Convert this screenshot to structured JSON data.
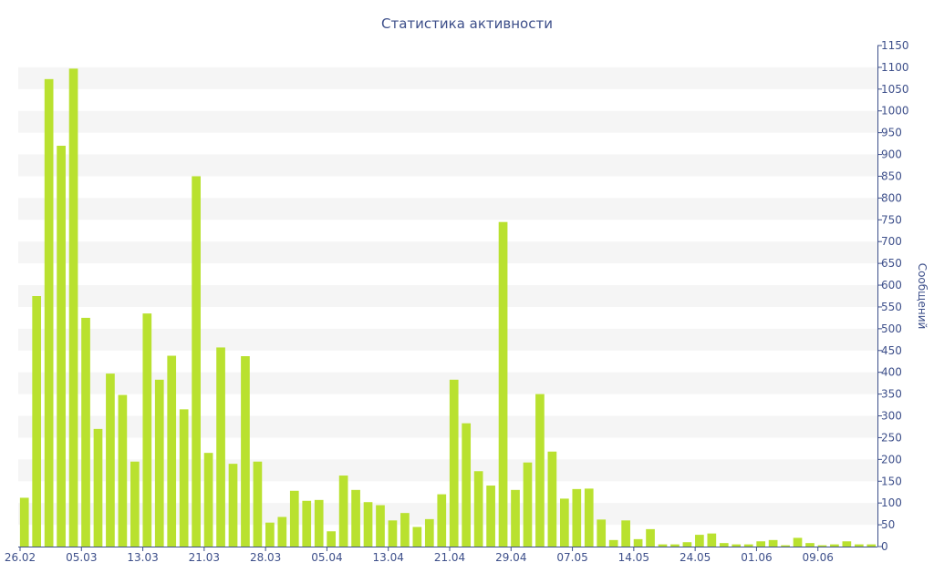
{
  "chart_data": {
    "type": "bar",
    "title": "Статистика активности",
    "xlabel": "",
    "ylabel": "Сообщений",
    "ylim": [
      0,
      1150
    ],
    "yticks": [
      0,
      50,
      100,
      150,
      200,
      250,
      300,
      350,
      400,
      450,
      500,
      550,
      600,
      650,
      700,
      750,
      800,
      850,
      900,
      950,
      1000,
      1050,
      1100,
      1150
    ],
    "x_tick_labels": [
      "26.02",
      "05.03",
      "13.03",
      "21.03",
      "28.03",
      "05.04",
      "13.04",
      "21.04",
      "29.04",
      "07.05",
      "14.05",
      "24.05",
      "01.06",
      "09.06"
    ],
    "x_tick_positions": [
      0,
      5,
      10,
      15,
      20,
      25,
      30,
      35,
      40,
      45,
      50,
      55,
      60,
      65
    ],
    "y_axis_position": "right",
    "grid": "horizontal alternating bands",
    "colors": {
      "bar": "#b9e12f",
      "text": "#3d4f8a",
      "band": "#f5f5f5"
    },
    "values": [
      112,
      575,
      1073,
      920,
      1097,
      525,
      270,
      397,
      348,
      195,
      535,
      383,
      438,
      315,
      850,
      215,
      457,
      190,
      437,
      195,
      55,
      68,
      128,
      105,
      107,
      35,
      163,
      130,
      102,
      95,
      60,
      77,
      45,
      63,
      120,
      383,
      283,
      173,
      140,
      745,
      130,
      193,
      350,
      218,
      110,
      132,
      133,
      62,
      15,
      60,
      17,
      40,
      5,
      5,
      10,
      27,
      30,
      8,
      5,
      5,
      12,
      15,
      3,
      20,
      8,
      3,
      5,
      12,
      5,
      5
    ]
  }
}
